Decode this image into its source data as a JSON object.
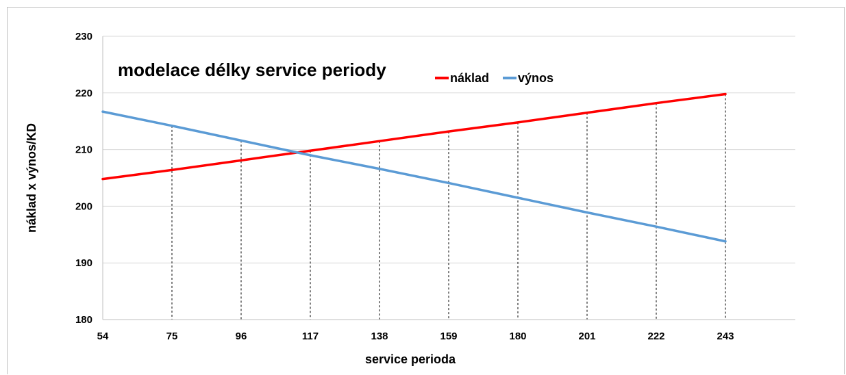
{
  "chart_data": {
    "type": "line",
    "title": "modelace délky service periody",
    "xlabel": "service perioda",
    "ylabel": "náklad x výnos/KD",
    "categories": [
      54,
      75,
      96,
      117,
      138,
      159,
      180,
      201,
      222,
      243
    ],
    "ylim": [
      180,
      230
    ],
    "yticks": [
      180,
      190,
      200,
      210,
      220,
      230
    ],
    "grid": true,
    "legend_position": "top",
    "series": [
      {
        "name": "náklad",
        "color": "#ff0000",
        "values": [
          204.8,
          206.4,
          208.1,
          209.8,
          211.5,
          213.2,
          214.8,
          216.5,
          218.2,
          219.8
        ]
      },
      {
        "name": "výnos",
        "color": "#5b9bd5",
        "values": [
          216.7,
          214.2,
          211.6,
          209.0,
          206.6,
          204.1,
          201.5,
          198.9,
          196.4,
          193.8
        ]
      }
    ]
  }
}
